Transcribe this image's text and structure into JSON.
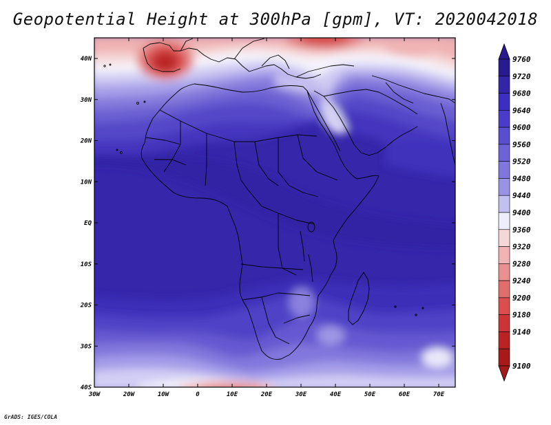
{
  "title": "Geopotential Height at 300hPa [gpm], VT: 2020042018",
  "credit": "GrADS: IGES/COLA",
  "lat_labels": [
    "40N",
    "30N",
    "20N",
    "10N",
    "EQ",
    "10S",
    "20S",
    "30S",
    "40S"
  ],
  "lon_labels": [
    "30W",
    "20W",
    "10W",
    "0",
    "10E",
    "20E",
    "30E",
    "40E",
    "50E",
    "60E",
    "70E"
  ],
  "colorbar": {
    "levels": [
      "9760",
      "9720",
      "9680",
      "9640",
      "9600",
      "9560",
      "9520",
      "9480",
      "9440",
      "9400",
      "9360",
      "9320",
      "9280",
      "9240",
      "9200",
      "9180",
      "9140",
      "9100"
    ],
    "colors": [
      "#2a1a8f",
      "#3324a8",
      "#3c2ec0",
      "#4a3cc8",
      "#5a4ed0",
      "#6d62d6",
      "#8176dc",
      "#9a92e4",
      "#c3bff0",
      "#eeeefa",
      "#f6d7d7",
      "#f0b4b4",
      "#e99090",
      "#e26d6d",
      "#d94f4f",
      "#cc3535",
      "#b82424",
      "#a51a1a"
    ]
  },
  "colors": {
    "deep_blue": "#3324a8",
    "mid_blue": "#5a4ed0",
    "light_blue": "#9a92e4",
    "white": "#f5f5fb",
    "light_red": "#f0b4b4",
    "red": "#d94f4f",
    "dark_red": "#a51a1a"
  }
}
